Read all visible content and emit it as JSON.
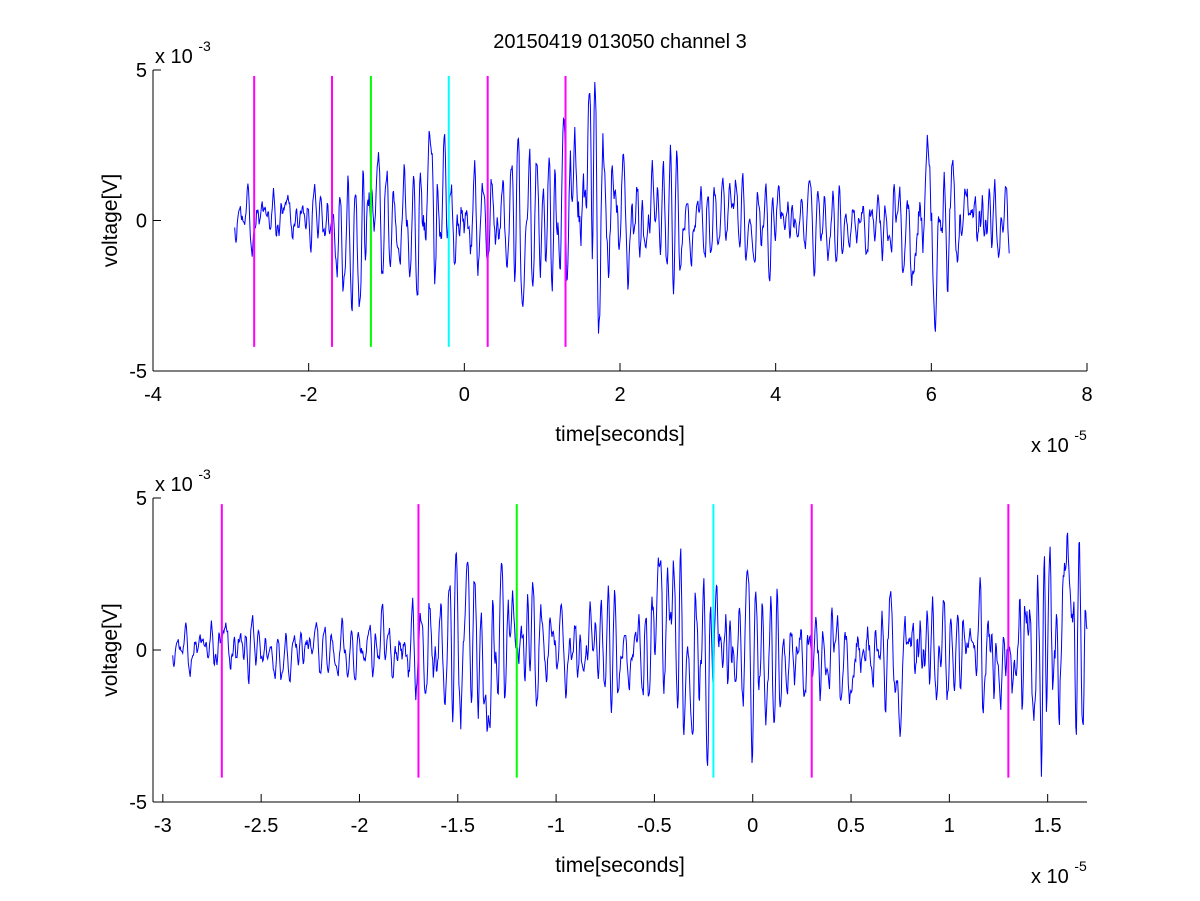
{
  "title": "20150419 013050 channel 3",
  "colors": {
    "signal": "#0000ff",
    "magenta": "#ff00ff",
    "green": "#00ff00",
    "cyan": "#00ffff",
    "axis": "#000000"
  },
  "chart_data": [
    {
      "type": "line",
      "title": "20150419 013050 channel 3",
      "xlabel": "time[seconds]",
      "ylabel": "voltage[V]",
      "x_exponent_label": "x 10",
      "x_exponent": "-5",
      "y_exponent_label": "x 10",
      "y_exponent": "-3",
      "xlim": [
        -4,
        8
      ],
      "ylim": [
        -5,
        5
      ],
      "xticks": [
        -4,
        -2,
        0,
        2,
        4,
        6,
        8
      ],
      "yticks": [
        -5,
        0,
        5
      ],
      "grid": false,
      "box": "axes-left-bottom-only",
      "signal": {
        "color": "#0000ff",
        "x_range": [
          -2.95,
          7.0
        ],
        "envelope_ymv": [
          [
            -2.95,
            0.8
          ],
          [
            -2.7,
            1.2
          ],
          [
            -2.4,
            1.3
          ],
          [
            -2.0,
            1.0
          ],
          [
            -1.7,
            1.6
          ],
          [
            -1.4,
            2.8
          ],
          [
            -1.2,
            2.6
          ],
          [
            -0.8,
            1.6
          ],
          [
            -0.5,
            3.0
          ],
          [
            -0.2,
            2.2
          ],
          [
            0.3,
            1.6
          ],
          [
            0.7,
            2.2
          ],
          [
            1.0,
            2.0
          ],
          [
            1.3,
            2.6
          ],
          [
            1.6,
            4.2
          ],
          [
            2.0,
            2.4
          ],
          [
            2.5,
            1.8
          ],
          [
            3.0,
            1.6
          ],
          [
            3.5,
            1.3
          ],
          [
            4.0,
            1.2
          ],
          [
            4.5,
            1.0
          ],
          [
            5.0,
            1.1
          ],
          [
            5.5,
            1.4
          ],
          [
            6.0,
            3.0
          ],
          [
            6.3,
            2.0
          ],
          [
            6.7,
            1.6
          ],
          [
            7.0,
            1.2
          ]
        ],
        "peaks": [
          {
            "x": 1.6,
            "y": 4.3
          },
          {
            "x": 6.05,
            "y": -3.8
          },
          {
            "x": 5.95,
            "y": 3.0
          },
          {
            "x": -1.35,
            "y": -3.0
          },
          {
            "x": -0.45,
            "y": 3.1
          },
          {
            "x": 0.75,
            "y": -2.9
          }
        ]
      },
      "markers": [
        {
          "x": -2.7,
          "color": "#ff00ff",
          "y_range": [
            -4.2,
            4.8
          ]
        },
        {
          "x": -1.7,
          "color": "#ff00ff",
          "y_range": [
            -4.2,
            4.8
          ]
        },
        {
          "x": -1.2,
          "color": "#00ff00",
          "y_range": [
            -4.2,
            4.8
          ]
        },
        {
          "x": -0.2,
          "color": "#00ffff",
          "y_range": [
            -4.2,
            4.8
          ]
        },
        {
          "x": 0.3,
          "color": "#ff00ff",
          "y_range": [
            -4.2,
            4.8
          ]
        },
        {
          "x": 1.3,
          "color": "#ff00ff",
          "y_range": [
            -4.2,
            4.8
          ]
        }
      ]
    },
    {
      "type": "line",
      "title": "",
      "xlabel": "time[seconds]",
      "ylabel": "voltage[V]",
      "x_exponent_label": "x 10",
      "x_exponent": "-5",
      "y_exponent_label": "x 10",
      "y_exponent": "-3",
      "xlim": [
        -3.05,
        1.7
      ],
      "ylim": [
        -5,
        5
      ],
      "xticks": [
        -3,
        -2.5,
        -2,
        -1.5,
        -1,
        -0.5,
        0,
        0.5,
        1,
        1.5
      ],
      "yticks": [
        -5,
        0,
        5
      ],
      "grid": false,
      "box": "axes-left-bottom-only",
      "signal": {
        "color": "#0000ff",
        "x_range": [
          -2.95,
          1.7
        ],
        "envelope_ymv": [
          [
            -2.95,
            0.6
          ],
          [
            -2.7,
            1.3
          ],
          [
            -2.4,
            0.9
          ],
          [
            -2.0,
            1.0
          ],
          [
            -1.7,
            1.6
          ],
          [
            -1.5,
            2.6
          ],
          [
            -1.3,
            2.2
          ],
          [
            -1.0,
            1.6
          ],
          [
            -0.6,
            1.4
          ],
          [
            -0.45,
            3.0
          ],
          [
            -0.2,
            2.2
          ],
          [
            0.0,
            2.0
          ],
          [
            0.3,
            1.6
          ],
          [
            0.7,
            2.0
          ],
          [
            1.0,
            1.8
          ],
          [
            1.3,
            2.0
          ],
          [
            1.6,
            4.2
          ],
          [
            1.7,
            2.0
          ]
        ],
        "peaks": [
          {
            "x": 1.6,
            "y": 4.2
          },
          {
            "x": -1.35,
            "y": -3.0
          },
          {
            "x": -0.48,
            "y": 3.1
          },
          {
            "x": 0.75,
            "y": -2.9
          },
          {
            "x": -1.45,
            "y": 2.9
          }
        ]
      },
      "markers": [
        {
          "x": -2.7,
          "color": "#ff00ff",
          "y_range": [
            -4.2,
            4.8
          ]
        },
        {
          "x": -1.7,
          "color": "#ff00ff",
          "y_range": [
            -4.2,
            4.8
          ]
        },
        {
          "x": -1.2,
          "color": "#00ff00",
          "y_range": [
            -4.2,
            4.8
          ]
        },
        {
          "x": -0.2,
          "color": "#00ffff",
          "y_range": [
            -4.2,
            4.8
          ]
        },
        {
          "x": 0.3,
          "color": "#ff00ff",
          "y_range": [
            -4.2,
            4.8
          ]
        },
        {
          "x": 1.3,
          "color": "#ff00ff",
          "y_range": [
            -4.2,
            4.8
          ]
        }
      ]
    }
  ]
}
